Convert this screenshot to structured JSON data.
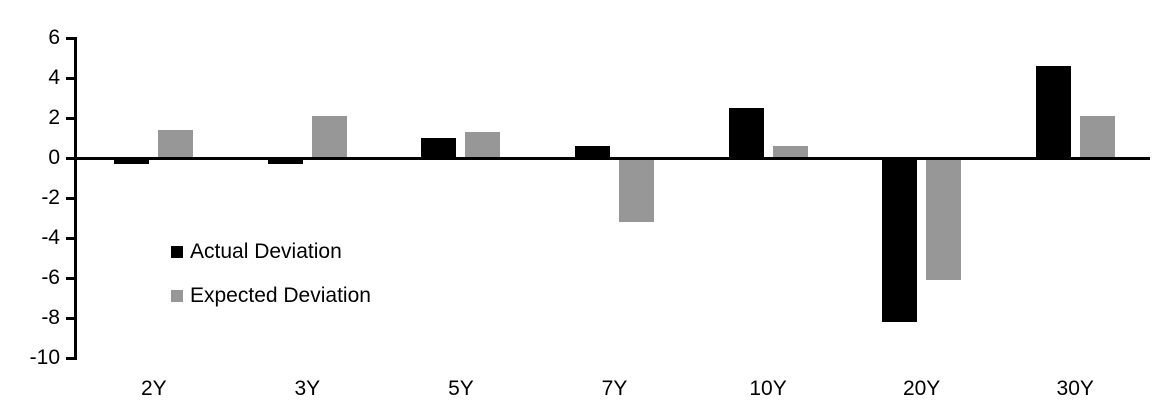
{
  "chart_data": {
    "type": "bar",
    "title": "",
    "xlabel": "",
    "ylabel": "",
    "categories": [
      "2Y",
      "3Y",
      "5Y",
      "7Y",
      "10Y",
      "20Y",
      "30Y"
    ],
    "series": [
      {
        "name": "Actual Deviation",
        "color": "#000000",
        "values": [
          -0.3,
          -0.3,
          1.0,
          0.6,
          2.5,
          -8.2,
          4.6
        ]
      },
      {
        "name": "Expected Deviation",
        "color": "#979797",
        "values": [
          1.4,
          2.1,
          1.3,
          -3.2,
          0.6,
          -6.1,
          2.1
        ]
      }
    ],
    "y_axis": {
      "min": -10,
      "max": 6,
      "tick_step": 2,
      "ticks": [
        6,
        4,
        2,
        0,
        -2,
        -4,
        -6,
        -8,
        -10
      ]
    },
    "grid": "off",
    "legend_position": "inside-top-left",
    "baseline": 0,
    "colors": {
      "background": "#ffffff",
      "axis": "#000000"
    }
  }
}
